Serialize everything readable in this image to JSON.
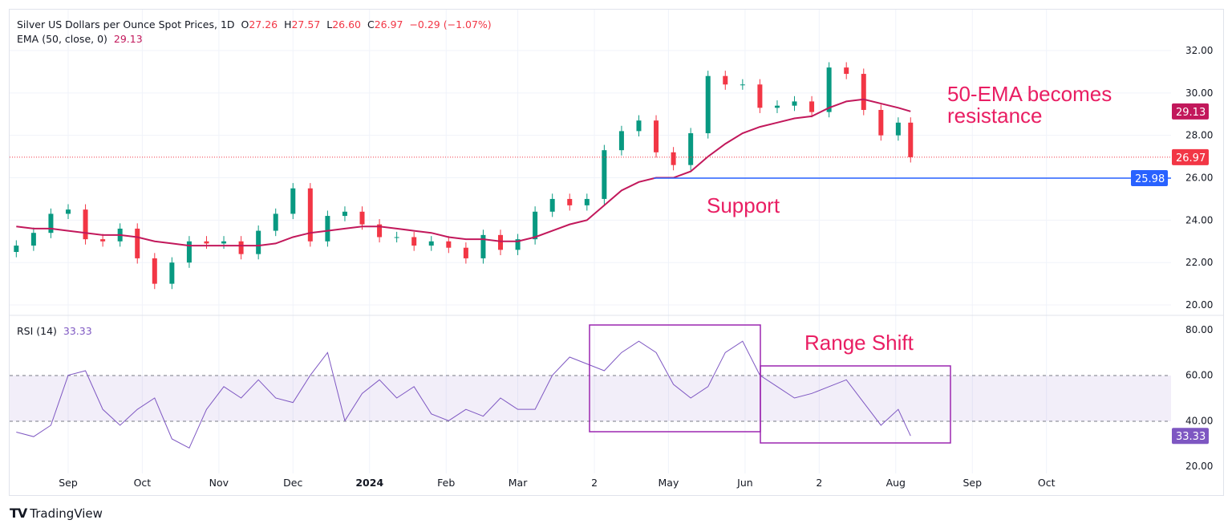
{
  "header": {
    "symbol_title": "Silver US Dollars per Ounce Spot Prices, 1D",
    "open_label": "O",
    "open": "27.26",
    "high_label": "H",
    "high": "27.57",
    "low_label": "L",
    "low": "26.60",
    "close_label": "C",
    "close": "26.97",
    "change": "−0.29 (−1.07%)",
    "ema_label": "EMA (50, close, 0)",
    "ema_value": "29.13",
    "rsi_label": "RSI (14)",
    "rsi_value": "33.33"
  },
  "brand": "TradingView",
  "colors": {
    "up": "#089981",
    "down": "#f23645",
    "ema": "#c2185b",
    "rsi": "#7e57c2",
    "support": "#2962ff",
    "annotation": "#e91e63",
    "box": "#9c27b0"
  },
  "chart_data": [
    {
      "type": "candlestick",
      "title": "Silver US Dollars per Ounce Spot Prices, 1D",
      "ylim": [
        20,
        32.5
      ],
      "y_ticks": [
        "32.00",
        "30.00",
        "28.00",
        "26.00",
        "24.00",
        "22.00",
        "20.00"
      ],
      "x_tick_labels": [
        "Sep",
        "Oct",
        "Nov",
        "Dec",
        "2024",
        "Feb",
        "Mar",
        "2",
        "May",
        "Jun",
        "2",
        "Aug",
        "Sep",
        "Oct"
      ],
      "x_tick_dates": [
        "2023-09-01",
        "2023-10-01",
        "2023-11-01",
        "2023-12-01",
        "2024-01-01",
        "2024-02-01",
        "2024-03-01",
        "2024-04-01",
        "2024-05-01",
        "2024-06-01",
        "2024-07-01",
        "2024-08-01",
        "2024-09-01",
        "2024-10-01"
      ],
      "dates": [
        "2023-08-11",
        "2023-08-18",
        "2023-08-25",
        "2023-09-01",
        "2023-09-08",
        "2023-09-15",
        "2023-09-22",
        "2023-09-29",
        "2023-10-06",
        "2023-10-13",
        "2023-10-20",
        "2023-10-27",
        "2023-11-03",
        "2023-11-10",
        "2023-11-17",
        "2023-11-24",
        "2023-12-01",
        "2023-12-08",
        "2023-12-15",
        "2023-12-22",
        "2023-12-29",
        "2024-01-05",
        "2024-01-12",
        "2024-01-19",
        "2024-01-26",
        "2024-02-02",
        "2024-02-09",
        "2024-02-16",
        "2024-02-23",
        "2024-03-01",
        "2024-03-08",
        "2024-03-15",
        "2024-03-22",
        "2024-03-29",
        "2024-04-05",
        "2024-04-12",
        "2024-04-19",
        "2024-04-26",
        "2024-05-03",
        "2024-05-10",
        "2024-05-17",
        "2024-05-24",
        "2024-05-31",
        "2024-06-07",
        "2024-06-14",
        "2024-06-21",
        "2024-06-28",
        "2024-07-05",
        "2024-07-12",
        "2024-07-19",
        "2024-07-26",
        "2024-08-02",
        "2024-08-07"
      ],
      "close": [
        22.8,
        23.4,
        24.3,
        24.5,
        23.1,
        23.0,
        23.6,
        22.2,
        21.0,
        22.0,
        23.0,
        22.9,
        23.0,
        22.4,
        23.5,
        24.3,
        25.5,
        23.0,
        24.2,
        24.4,
        23.8,
        23.2,
        23.2,
        22.8,
        23.0,
        22.7,
        22.2,
        23.3,
        22.6,
        23.1,
        24.4,
        25.0,
        24.7,
        25.0,
        27.3,
        28.2,
        28.7,
        27.2,
        26.6,
        28.1,
        30.8,
        30.4,
        30.4,
        29.3,
        29.4,
        29.6,
        29.1,
        31.2,
        30.9,
        29.2,
        28.0,
        28.6,
        26.97
      ],
      "ema50": [
        23.7,
        23.6,
        23.6,
        23.5,
        23.4,
        23.3,
        23.3,
        23.2,
        23.0,
        22.9,
        22.8,
        22.8,
        22.8,
        22.8,
        22.8,
        22.9,
        23.2,
        23.4,
        23.5,
        23.6,
        23.7,
        23.7,
        23.6,
        23.5,
        23.4,
        23.2,
        23.1,
        23.1,
        23.0,
        23.0,
        23.2,
        23.5,
        23.8,
        24.0,
        24.7,
        25.4,
        25.8,
        26.0,
        26.0,
        26.3,
        27.0,
        27.6,
        28.1,
        28.4,
        28.6,
        28.8,
        28.9,
        29.3,
        29.6,
        29.7,
        29.5,
        29.3,
        29.13
      ],
      "price_labels": [
        {
          "value": "29.13",
          "series": "EMA"
        },
        {
          "value": "26.97",
          "series": "Close"
        },
        {
          "value": "25.98",
          "series": "Support"
        }
      ],
      "support_level": 25.98,
      "annotations": [
        "50-EMA becomes resistance",
        "Support"
      ]
    },
    {
      "type": "line",
      "title": "RSI (14)",
      "ylim": [
        15,
        85
      ],
      "y_ticks": [
        "80.00",
        "60.00",
        "40.00",
        "20.00"
      ],
      "band": [
        40,
        60
      ],
      "values": [
        35,
        33,
        38,
        60,
        62,
        45,
        38,
        45,
        50,
        32,
        28,
        45,
        55,
        50,
        58,
        50,
        48,
        60,
        70,
        40,
        52,
        58,
        50,
        55,
        43,
        40,
        45,
        42,
        50,
        45,
        45,
        60,
        68,
        65,
        62,
        70,
        75,
        70,
        56,
        50,
        55,
        70,
        75,
        60,
        55,
        50,
        52,
        55,
        58,
        48,
        38,
        45,
        33.33
      ],
      "last_label": "33.33",
      "annotations": [
        "Range Shift"
      ]
    }
  ]
}
